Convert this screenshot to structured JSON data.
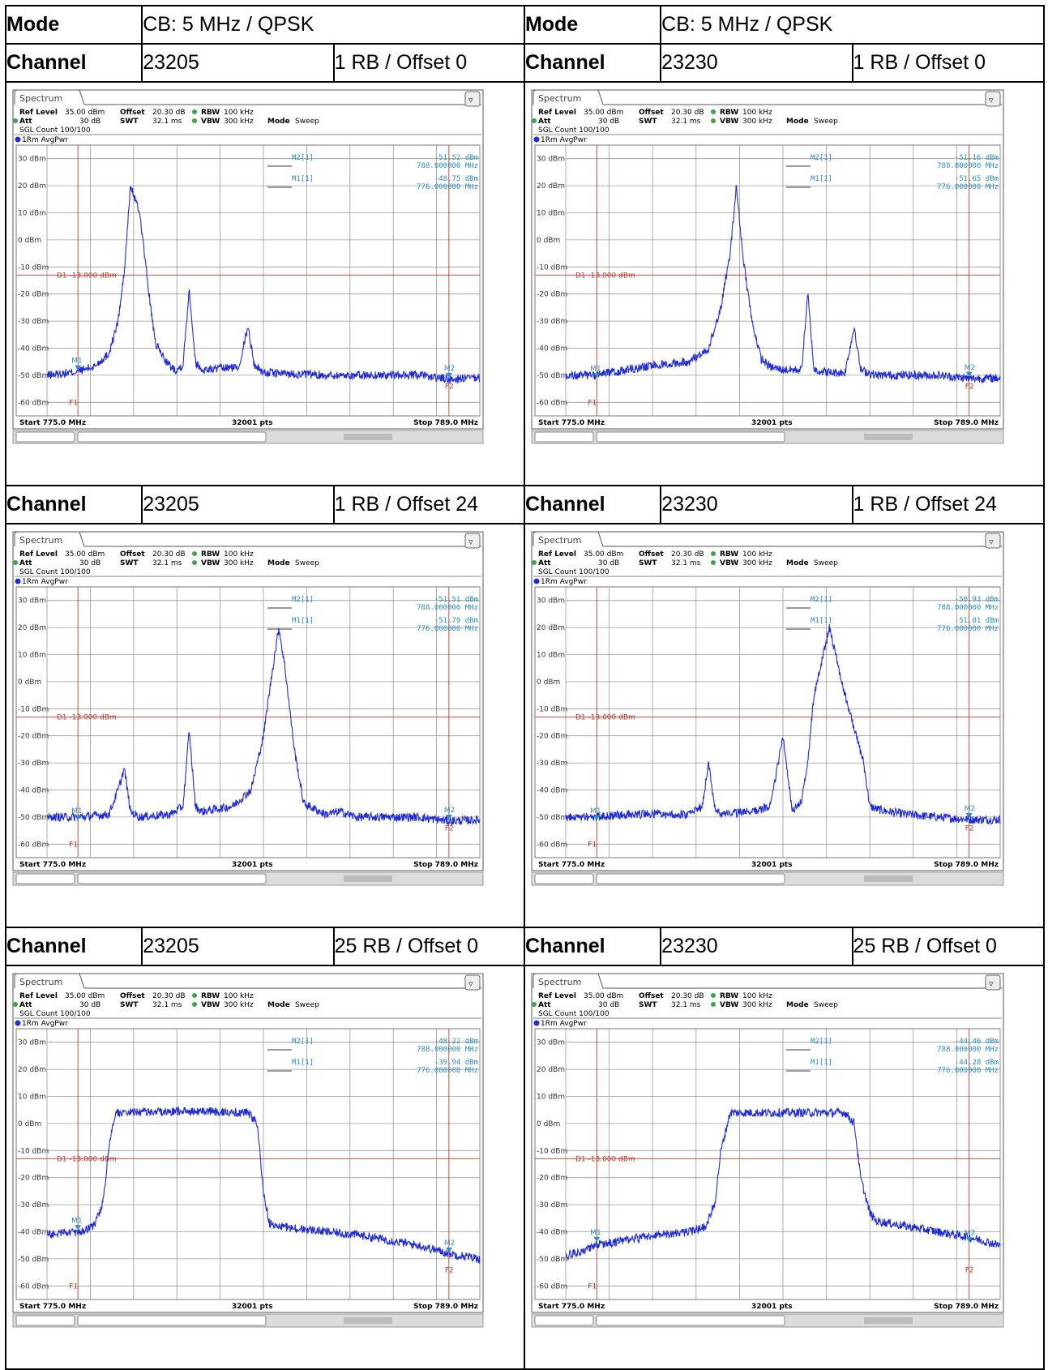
{
  "mode_label": "Mode",
  "mode_value": "CB: 5 MHz / QPSK",
  "channel_label": "Channel",
  "panels_rows": [
    [
      {
        "channel": "23205",
        "rb": "1 RB / Offset 0"
      },
      {
        "channel": "23230",
        "rb": "1 RB / Offset 0"
      }
    ],
    [
      {
        "channel": "23205",
        "rb": "1 RB / Offset 24"
      },
      {
        "channel": "23230",
        "rb": "1 RB / Offset 24"
      }
    ],
    [
      {
        "channel": "23205",
        "rb": "25 RB / Offset 0"
      },
      {
        "channel": "23230",
        "rb": "25 RB / Offset 0"
      }
    ]
  ],
  "analyzer": {
    "tab": "Spectrum",
    "ref_level_label": "Ref Level",
    "ref_level": "35.00 dBm",
    "offset_label": "Offset",
    "offset": "20.30 dB",
    "rbw_label": "RBW",
    "rbw": "100 kHz",
    "att_label": "Att",
    "att": "30 dB",
    "swt_label": "SWT",
    "swt": "32.1 ms",
    "vbw_label": "VBW",
    "vbw": "300 kHz",
    "mode_label": "Mode",
    "mode": "Sweep",
    "sgl_count": "SGL Count 100/100",
    "trace": "1Rm AvgPwr",
    "start": "Start 775.0 MHz",
    "pts": "32001 pts",
    "stop": "Stop 789.0 MHz",
    "d1_label": "D1  -13.000 dBm",
    "m1_name": "M1[1]",
    "m2_name": "M2[1]",
    "m1_freq": "776.000000 MHz",
    "m2_freq": "788.000000 MHz",
    "f1": "F1",
    "f2": "F2",
    "y_ticks": [
      "30 dBm",
      "20 dBm",
      "10 dBm",
      "0 dBm",
      "-10 dBm",
      "-20 dBm",
      "-30 dBm",
      "-40 dBm",
      "-50 dBm",
      "-60 dBm"
    ]
  },
  "chart_data": [
    {
      "type": "line",
      "title": "",
      "xlabel": "",
      "ylabel": "",
      "xlim": [
        775.0,
        789.0
      ],
      "ylim": [
        -65,
        35
      ],
      "limit_line_dbm": -13.0,
      "markers": {
        "M1": {
          "x": 776.0,
          "y": -48.75
        },
        "M2": {
          "x": 788.0,
          "y": -51.52
        }
      },
      "marker_text": {
        "M1": "-48.75 dBm",
        "M2": "-51.52 dBm"
      },
      "series": [
        {
          "x": [
            775.0,
            775.8,
            776.5,
            777.0,
            777.3,
            777.5,
            777.7,
            778.0,
            778.3,
            778.5,
            778.8,
            779.0,
            779.2,
            779.4,
            779.6,
            779.8,
            780.0,
            781.2,
            781.5,
            781.7,
            782.0,
            783.0,
            784.0,
            785.0,
            786.0,
            787.0,
            788.0,
            789.0
          ],
          "y": [
            -50,
            -49,
            -47,
            -42,
            -30,
            -12,
            20,
            10,
            -20,
            -38,
            -44,
            -47,
            -48,
            -46,
            -18,
            -45,
            -48,
            -47,
            -32,
            -46,
            -49,
            -49.5,
            -50,
            -50,
            -50,
            -50,
            -51.5,
            -51
          ]
        }
      ]
    },
    {
      "type": "line",
      "title": "",
      "xlabel": "",
      "ylabel": "",
      "xlim": [
        775.0,
        789.0
      ],
      "ylim": [
        -65,
        35
      ],
      "limit_line_dbm": -13.0,
      "markers": {
        "M1": {
          "x": 776.0,
          "y": -51.65
        },
        "M2": {
          "x": 788.0,
          "y": -51.16
        }
      },
      "marker_text": {
        "M1": "-51.65 dBm",
        "M2": "-51.16 dBm"
      },
      "series": [
        {
          "x": [
            775.0,
            776.0,
            777.0,
            778.0,
            779.0,
            779.6,
            780.0,
            780.3,
            780.5,
            780.7,
            781.0,
            781.3,
            781.6,
            782.0,
            782.6,
            782.8,
            783.0,
            783.5,
            784.0,
            784.3,
            784.5,
            785.0,
            786.0,
            787.0,
            788.0,
            789.0
          ],
          "y": [
            -50,
            -50,
            -48,
            -46,
            -45,
            -40,
            -25,
            -5,
            20,
            -5,
            -30,
            -44,
            -47,
            -48,
            -48,
            -20,
            -48,
            -49,
            -49,
            -32,
            -48,
            -50,
            -50,
            -50,
            -51.2,
            -51
          ]
        }
      ]
    },
    {
      "type": "line",
      "title": "",
      "xlabel": "",
      "ylabel": "",
      "xlim": [
        775.0,
        789.0
      ],
      "ylim": [
        -65,
        35
      ],
      "limit_line_dbm": -13.0,
      "markers": {
        "M1": {
          "x": 776.0,
          "y": -51.79
        },
        "M2": {
          "x": 788.0,
          "y": -51.51
        }
      },
      "marker_text": {
        "M1": "-51.79 dBm",
        "M2": "-51.51 dBm"
      },
      "series": [
        {
          "x": [
            775.0,
            776.0,
            777.0,
            777.3,
            777.5,
            777.7,
            778.0,
            779.0,
            779.4,
            779.6,
            779.8,
            780.0,
            781.0,
            781.6,
            782.0,
            782.3,
            782.5,
            782.7,
            783.0,
            783.3,
            784.0,
            784.5,
            785.0,
            786.0,
            787.0,
            788.0,
            789.0
          ],
          "y": [
            -50,
            -50,
            -49,
            -40,
            -32,
            -48,
            -50,
            -49,
            -46,
            -18,
            -46,
            -48,
            -46,
            -40,
            -20,
            5,
            20,
            5,
            -25,
            -45,
            -49,
            -48,
            -50,
            -50,
            -50,
            -51.5,
            -51
          ]
        }
      ]
    },
    {
      "type": "line",
      "title": "",
      "xlabel": "",
      "ylabel": "",
      "xlim": [
        775.0,
        789.0
      ],
      "ylim": [
        -65,
        35
      ],
      "limit_line_dbm": -13.0,
      "markers": {
        "M1": {
          "x": 776.0,
          "y": -51.81
        },
        "M2": {
          "x": 788.0,
          "y": -50.93
        }
      },
      "marker_text": {
        "M1": "-51.81 dBm",
        "M2": "-50.93 dBm"
      },
      "series": [
        {
          "x": [
            775.0,
            776.0,
            777.0,
            778.0,
            779.0,
            779.4,
            779.6,
            779.8,
            780.0,
            781.0,
            781.6,
            782.0,
            782.3,
            782.6,
            782.8,
            783.0,
            783.5,
            784.0,
            784.6,
            784.8,
            785.0,
            785.4,
            786.0,
            787.0,
            788.0,
            789.0
          ],
          "y": [
            -50,
            -50,
            -49,
            -49,
            -49,
            -46,
            -30,
            -46,
            -49,
            -48,
            -46,
            -20,
            -48,
            -44,
            -30,
            -5,
            20,
            -5,
            -30,
            -46,
            -47,
            -48,
            -49,
            -50,
            -50.9,
            -51
          ]
        }
      ]
    },
    {
      "type": "line",
      "title": "",
      "xlabel": "",
      "ylabel": "",
      "xlim": [
        775.0,
        789.0
      ],
      "ylim": [
        -65,
        35
      ],
      "limit_line_dbm": -13.0,
      "markers": {
        "M1": {
          "x": 776.0,
          "y": -39.94
        },
        "M2": {
          "x": 788.0,
          "y": -48.22
        }
      },
      "marker_text": {
        "M1": "-39.94 dBm",
        "M2": "-48.22 dBm"
      },
      "series": [
        {
          "x": [
            775.0,
            775.5,
            776.0,
            776.5,
            776.8,
            777.0,
            777.2,
            779.0,
            780.0,
            781.5,
            781.8,
            782.0,
            782.2,
            782.5,
            783.0,
            784.0,
            785.0,
            786.0,
            787.0,
            788.0,
            789.0
          ],
          "y": [
            -41,
            -40.5,
            -40,
            -38,
            -30,
            -10,
            4,
            4.5,
            4.5,
            4,
            0,
            -25,
            -37,
            -38,
            -38.5,
            -40,
            -41,
            -43,
            -45,
            -48,
            -50
          ]
        }
      ]
    },
    {
      "type": "line",
      "title": "",
      "xlabel": "",
      "ylabel": "",
      "xlim": [
        775.0,
        789.0
      ],
      "ylim": [
        -65,
        35
      ],
      "limit_line_dbm": -13.0,
      "markers": {
        "M1": {
          "x": 776.0,
          "y": -44.28
        },
        "M2": {
          "x": 788.0,
          "y": -44.46
        }
      },
      "marker_text": {
        "M1": "-44.28 dBm",
        "M2": "-44.46 dBm"
      },
      "series": [
        {
          "x": [
            775.0,
            776.0,
            777.0,
            778.0,
            779.0,
            779.5,
            779.8,
            780.0,
            780.3,
            782.0,
            784.0,
            784.3,
            784.5,
            784.8,
            785.0,
            786.0,
            787.0,
            788.0,
            789.0
          ],
          "y": [
            -49,
            -45,
            -43,
            -41,
            -40,
            -38,
            -30,
            -10,
            4,
            4,
            4,
            0,
            -20,
            -33,
            -36,
            -38,
            -40,
            -42,
            -45
          ]
        }
      ]
    }
  ]
}
